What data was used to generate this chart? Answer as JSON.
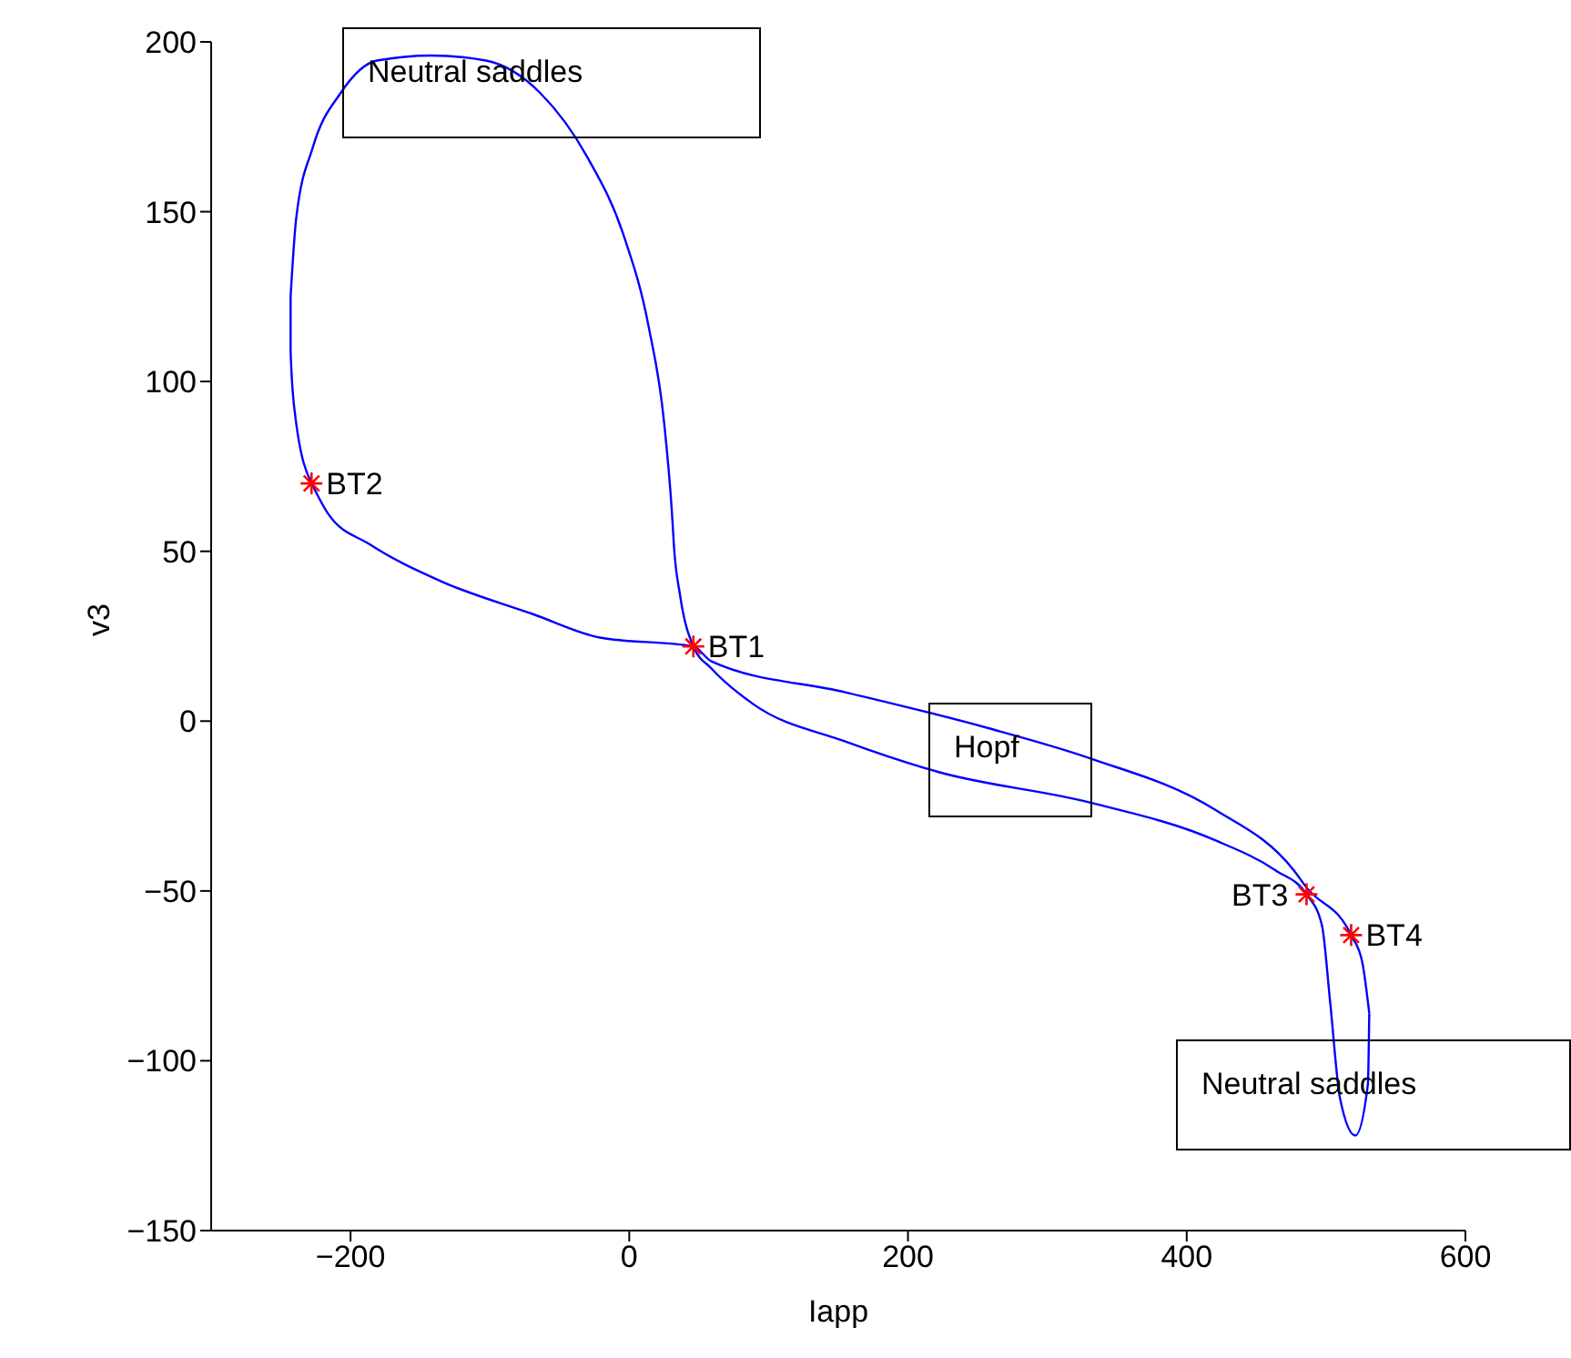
{
  "chart_data": {
    "type": "line",
    "xlabel": "Iapp",
    "ylabel": "v3",
    "xlim": [
      -300,
      600
    ],
    "xticks": [
      -200,
      0,
      200,
      400,
      600
    ],
    "ylim": [
      -150,
      200
    ],
    "yticks": [
      -150,
      -100,
      -50,
      0,
      50,
      100,
      150,
      200
    ],
    "grid": false,
    "legend": false,
    "series": [
      {
        "color": "#0000ff",
        "marker": "none",
        "line_style": "solid",
        "x": [
          -228,
          -240,
          -243,
          -243
        ],
        "values": [
          70,
          91,
          109,
          125
        ]
      },
      {
        "color": "#0000ff",
        "marker": "none",
        "line_style": "solid",
        "x": [
          -243,
          -239,
          -227,
          -207,
          -181,
          -142,
          -103,
          -64,
          -30,
          -4,
          14,
          25,
          31,
          32,
          36.5,
          46,
          59,
          89,
          155,
          222,
          331,
          420,
          464,
          486,
          497,
          503,
          510,
          521,
          530,
          531
        ],
        "values": [
          125,
          148,
          169,
          185,
          194.5,
          196,
          194.5,
          185,
          166,
          143,
          116,
          88,
          59,
          52,
          37,
          22,
          15.5,
          5,
          -6,
          -15,
          -24,
          -35,
          -44,
          -51,
          -60,
          -83,
          -111,
          -122,
          -107,
          -86
        ]
      },
      {
        "color": "#0000ff",
        "marker": "none",
        "line_style": "solid",
        "x": [
          531,
          526,
          518,
          486,
          477,
          420,
          331,
          257,
          155,
          59,
          46,
          -21,
          -69,
          -134,
          -186,
          -216,
          -228
        ],
        "values": [
          -86,
          -71,
          -63,
          -49,
          -44,
          -26,
          -11,
          -2,
          8.5,
          17.6,
          22,
          24.6,
          31.5,
          41,
          52,
          61,
          70
        ]
      },
      {
        "type": "scatter",
        "color": "#ff0000",
        "marker": "cross",
        "x": [
          46,
          -228,
          486,
          518
        ],
        "values": [
          22,
          70,
          -51,
          -63
        ]
      }
    ],
    "annotations": [
      {
        "text": "BT1",
        "x": 46,
        "y": 22
      },
      {
        "text": "BT2",
        "x": -228,
        "y": 70
      },
      {
        "text": "BT3",
        "x": 486,
        "y": -51
      },
      {
        "text": "BT4",
        "x": 518,
        "y": -63
      },
      "Neutral saddles",
      "Hopf",
      "Neutral saddles"
    ]
  }
}
